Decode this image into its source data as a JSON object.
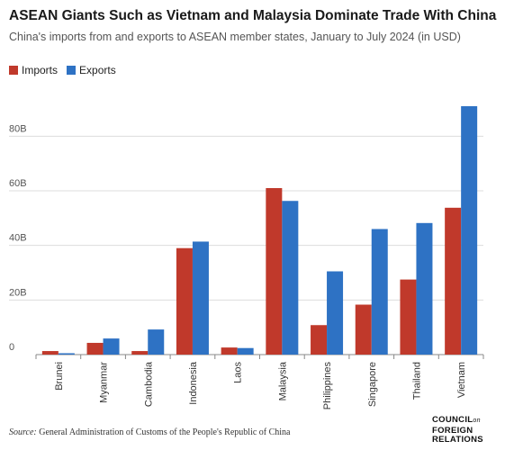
{
  "title": "ASEAN Giants Such as Vietnam and Malaysia Dominate Trade With China",
  "subtitle": "China's imports from and exports to ASEAN member states, January to July 2024 (in USD)",
  "source_label": "Source:",
  "source_text": "General Administration of Customs of the People's Republic of China",
  "logo": {
    "line1": "COUNCIL",
    "on": "on",
    "line2": "FOREIGN",
    "line3": "RELATIONS"
  },
  "colors": {
    "imports": "#c0392b",
    "exports": "#2e72c4",
    "grid": "#dddddd",
    "axis": "#888888"
  },
  "chart_data": {
    "type": "bar",
    "categories": [
      "Brunei",
      "Myanmar",
      "Cambodia",
      "Indonesia",
      "Laos",
      "Malaysia",
      "Philippines",
      "Singapore",
      "Thailand",
      "Vietnam"
    ],
    "series": [
      {
        "name": "Imports",
        "values": [
          1.3,
          4.3,
          1.3,
          39.0,
          2.6,
          61.0,
          10.8,
          18.3,
          27.5,
          53.8
        ]
      },
      {
        "name": "Exports",
        "values": [
          0.5,
          5.9,
          9.2,
          41.4,
          2.4,
          56.3,
          30.5,
          46.0,
          48.2,
          91.0
        ]
      }
    ],
    "yticks": [
      0,
      20,
      40,
      60,
      80
    ],
    "ytick_labels": [
      "0",
      "20B",
      "40B",
      "60B",
      "80B"
    ],
    "ylim": [
      0,
      91
    ],
    "xlabel": "",
    "ylabel": "",
    "legend_position": "top-left",
    "grid": true
  }
}
